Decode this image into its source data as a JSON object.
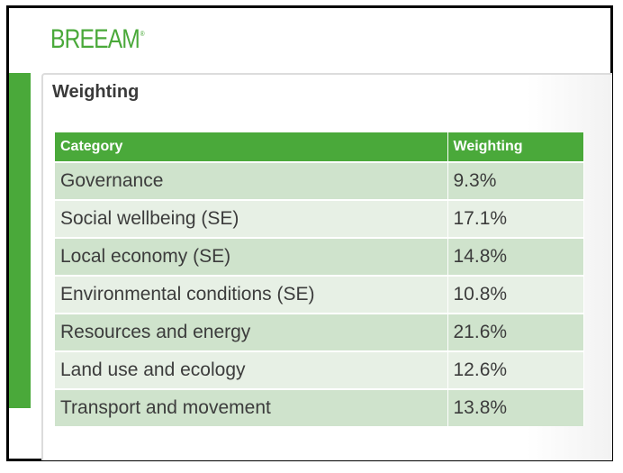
{
  "brand": {
    "logo_text": "BREEAM",
    "logo_mark": "®",
    "color": "#4aa93a"
  },
  "section": {
    "title": "Weighting"
  },
  "table": {
    "headers": [
      "Category",
      "Weighting"
    ],
    "rows": [
      [
        "Governance",
        "9.3%"
      ],
      [
        "Social wellbeing (SE)",
        "17.1%"
      ],
      [
        "Local economy (SE)",
        "14.8%"
      ],
      [
        "Environmental conditions (SE)",
        "10.8%"
      ],
      [
        "Resources and energy",
        "21.6%"
      ],
      [
        "Land use and ecology",
        "12.6%"
      ],
      [
        "Transport and movement",
        "13.8%"
      ]
    ]
  },
  "colors": {
    "header_bg": "#4aa93a",
    "row_dark": "#cfe3cc",
    "row_light": "#e7f0e5"
  }
}
